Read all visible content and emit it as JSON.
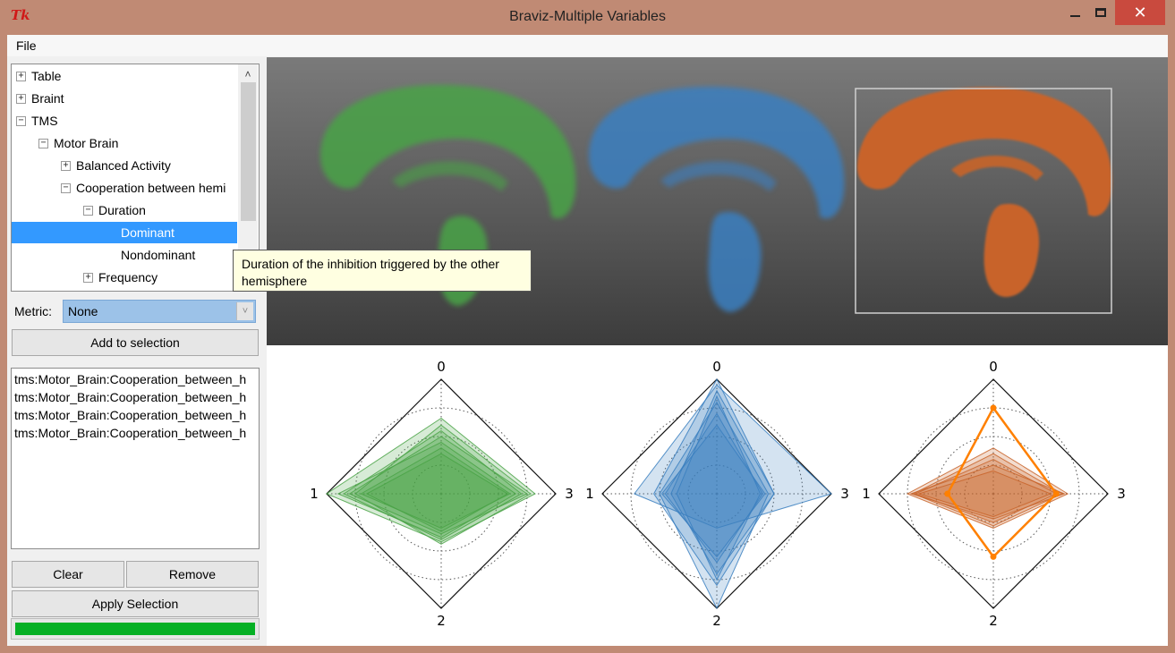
{
  "window": {
    "title": "Braviz-Multiple Variables",
    "tk_icon": "Tk",
    "close_glyph": "✕"
  },
  "menu": {
    "file": "File"
  },
  "tree": {
    "items": [
      {
        "label": "Table",
        "expander": "+",
        "level": 0
      },
      {
        "label": "Braint",
        "expander": "+",
        "level": 0
      },
      {
        "label": "TMS",
        "expander": "−",
        "level": 0
      },
      {
        "label": "Motor Brain",
        "expander": "−",
        "level": 1
      },
      {
        "label": "Balanced Activity",
        "expander": "+",
        "level": 2
      },
      {
        "label": "Cooperation between hemi",
        "expander": "−",
        "level": 2
      },
      {
        "label": "Duration",
        "expander": "−",
        "level": 3
      },
      {
        "label": "Dominant",
        "expander": "",
        "level": 4,
        "selected": true
      },
      {
        "label": "Nondominant",
        "expander": "",
        "level": 4
      },
      {
        "label": "Frequency",
        "expander": "+",
        "level": 3
      }
    ],
    "scroll_up_glyph": "˄"
  },
  "metric": {
    "label": "Metric:",
    "value": "None",
    "arrow": "˅"
  },
  "buttons": {
    "add": "Add to selection",
    "clear": "Clear",
    "remove": "Remove",
    "apply": "Apply Selection"
  },
  "selection_list": [
    "tms:Motor_Brain:Cooperation_between_h",
    "tms:Motor_Brain:Cooperation_between_h",
    "tms:Motor_Brain:Cooperation_between_h",
    "tms:Motor_Brain:Cooperation_between_h"
  ],
  "progress": {
    "fraction": 1.0,
    "color": "#06b025"
  },
  "tooltip": {
    "line1": "Duration of the inhibition triggered by the other",
    "line2": "hemisphere"
  },
  "brains": [
    {
      "color": "#4aa346"
    },
    {
      "color": "#3a7fc0"
    },
    {
      "color": "#c8642a",
      "highlighted": true
    }
  ],
  "chart_data": [
    {
      "type": "radar",
      "axes": [
        "0",
        "1",
        "2",
        "3"
      ],
      "axis_order_positions": [
        "top",
        "left",
        "bottom",
        "right"
      ],
      "rlim": [
        0,
        1
      ],
      "color": "#4aa346",
      "series": [
        {
          "values": [
            0.66,
            1.0,
            0.42,
            0.82
          ]
        },
        {
          "values": [
            0.55,
            0.85,
            0.4,
            0.7
          ]
        },
        {
          "values": [
            0.5,
            0.8,
            0.35,
            0.75
          ]
        },
        {
          "values": [
            0.45,
            0.9,
            0.38,
            0.65
          ]
        },
        {
          "values": [
            0.6,
            0.75,
            0.44,
            0.78
          ]
        },
        {
          "values": [
            0.4,
            0.7,
            0.3,
            0.6
          ]
        },
        {
          "values": [
            0.35,
            0.65,
            0.33,
            0.58
          ]
        }
      ]
    },
    {
      "type": "radar",
      "axes": [
        "0",
        "1",
        "2",
        "3"
      ],
      "axis_order_positions": [
        "top",
        "left",
        "bottom",
        "right"
      ],
      "rlim": [
        0,
        1
      ],
      "color": "#3a7fc0",
      "series": [
        {
          "values": [
            0.95,
            0.72,
            0.3,
            1.0
          ]
        },
        {
          "values": [
            1.0,
            0.55,
            0.8,
            0.5
          ]
        },
        {
          "values": [
            0.8,
            0.5,
            1.0,
            0.45
          ]
        },
        {
          "values": [
            0.7,
            0.45,
            0.6,
            0.4
          ]
        },
        {
          "values": [
            0.9,
            0.4,
            0.7,
            0.5
          ]
        },
        {
          "values": [
            0.6,
            0.48,
            0.55,
            0.42
          ]
        },
        {
          "values": [
            0.85,
            0.35,
            0.75,
            0.38
          ]
        }
      ]
    },
    {
      "type": "radar",
      "axes": [
        "0",
        "1",
        "2",
        "3"
      ],
      "axis_order_positions": [
        "top",
        "left",
        "bottom",
        "right"
      ],
      "rlim": [
        0,
        1
      ],
      "color": "#c8642a",
      "series": [
        {
          "values": [
            0.4,
            0.75,
            0.3,
            0.65
          ]
        },
        {
          "values": [
            0.35,
            0.7,
            0.28,
            0.6
          ]
        },
        {
          "values": [
            0.3,
            0.68,
            0.25,
            0.55
          ]
        },
        {
          "values": [
            0.25,
            0.72,
            0.22,
            0.62
          ]
        },
        {
          "values": [
            0.2,
            0.65,
            0.2,
            0.5
          ]
        }
      ],
      "highlight": {
        "values": [
          0.75,
          0.4,
          0.55,
          0.55
        ],
        "color": "#ff8000"
      }
    }
  ]
}
